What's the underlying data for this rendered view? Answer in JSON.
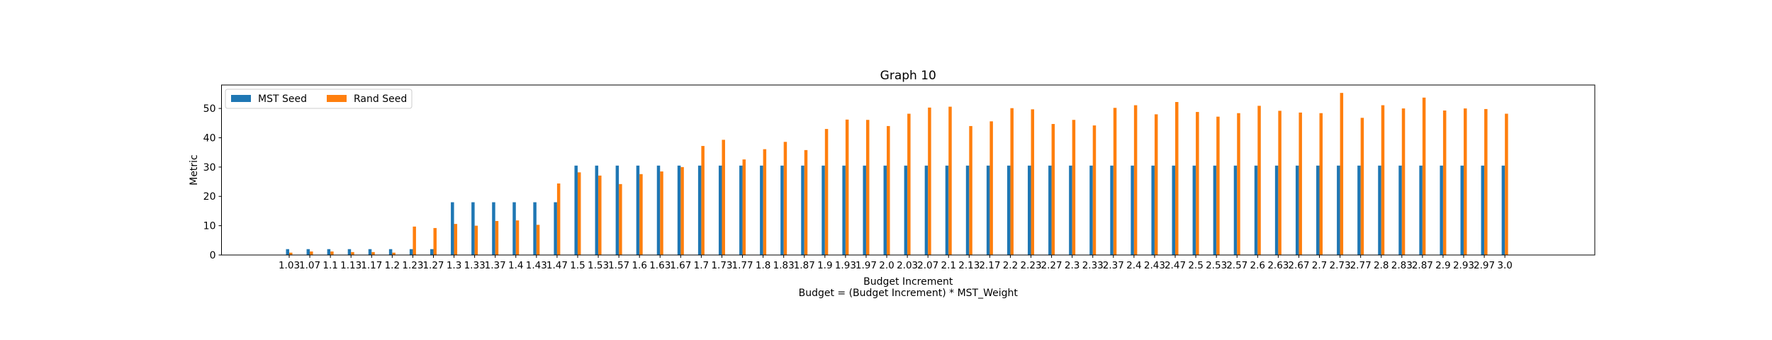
{
  "chart_data": {
    "type": "bar",
    "title": "Graph 10",
    "xlabel": "Budget Increment",
    "xlabel2": "Budget = (Budget Increment) * MST_Weight",
    "ylabel": "Metric",
    "ylim": [
      0,
      58
    ],
    "yticks": [
      0,
      10,
      20,
      30,
      40,
      50
    ],
    "legend_position": "top-left",
    "categories": [
      "1.03",
      "1.07",
      "1.1",
      "1.13",
      "1.17",
      "1.2",
      "1.23",
      "1.27",
      "1.3",
      "1.33",
      "1.37",
      "1.4",
      "1.43",
      "1.47",
      "1.5",
      "1.53",
      "1.57",
      "1.6",
      "1.63",
      "1.67",
      "1.7",
      "1.73",
      "1.77",
      "1.8",
      "1.83",
      "1.87",
      "1.9",
      "1.93",
      "1.97",
      "2.0",
      "2.03",
      "2.07",
      "2.1",
      "2.13",
      "2.17",
      "2.2",
      "2.23",
      "2.27",
      "2.3",
      "2.33",
      "2.37",
      "2.4",
      "2.43",
      "2.47",
      "2.5",
      "2.53",
      "2.57",
      "2.6",
      "2.63",
      "2.67",
      "2.7",
      "2.73",
      "2.77",
      "2.8",
      "2.83",
      "2.87",
      "2.9",
      "2.93",
      "2.97",
      "3.0"
    ],
    "series": [
      {
        "name": "MST Seed",
        "color": "#1f77b4",
        "values": [
          2,
          2,
          2,
          2,
          2,
          2,
          2,
          2,
          18,
          18,
          18,
          18,
          18,
          18,
          30.5,
          30.5,
          30.5,
          30.5,
          30.5,
          30.5,
          30.5,
          30.5,
          30.5,
          30.5,
          30.5,
          30.5,
          30.5,
          30.5,
          30.5,
          30.5,
          30.5,
          30.5,
          30.5,
          30.5,
          30.5,
          30.5,
          30.5,
          30.5,
          30.5,
          30.5,
          30.5,
          30.5,
          30.5,
          30.5,
          30.5,
          30.5,
          30.5,
          30.5,
          30.5,
          30.5,
          30.5,
          30.5,
          30.5,
          30.5,
          30.5,
          30.5,
          30.5,
          30.5,
          30.5,
          30.5
        ]
      },
      {
        "name": "Rand Seed",
        "color": "#ff7f0e",
        "values": [
          0.8,
          1.2,
          1.2,
          1.0,
          1.0,
          0.8,
          9.7,
          9.2,
          10.6,
          10.0,
          11.6,
          11.8,
          10.3,
          24.4,
          28.2,
          27.1,
          24.2,
          27.6,
          28.5,
          30.0,
          37.2,
          39.3,
          32.6,
          36.1,
          38.6,
          35.8,
          43.0,
          46.2,
          46.1,
          44.0,
          48.2,
          50.3,
          50.6,
          44.0,
          45.6,
          50.1,
          49.7,
          44.7,
          46.1,
          44.2,
          50.2,
          51.1,
          48.0,
          52.2,
          48.8,
          47.2,
          48.4,
          50.9,
          49.2,
          48.6,
          48.4,
          55.3,
          46.8,
          51.1,
          50.0,
          53.7,
          49.3,
          50.0,
          49.8,
          48.2
        ]
      }
    ]
  }
}
